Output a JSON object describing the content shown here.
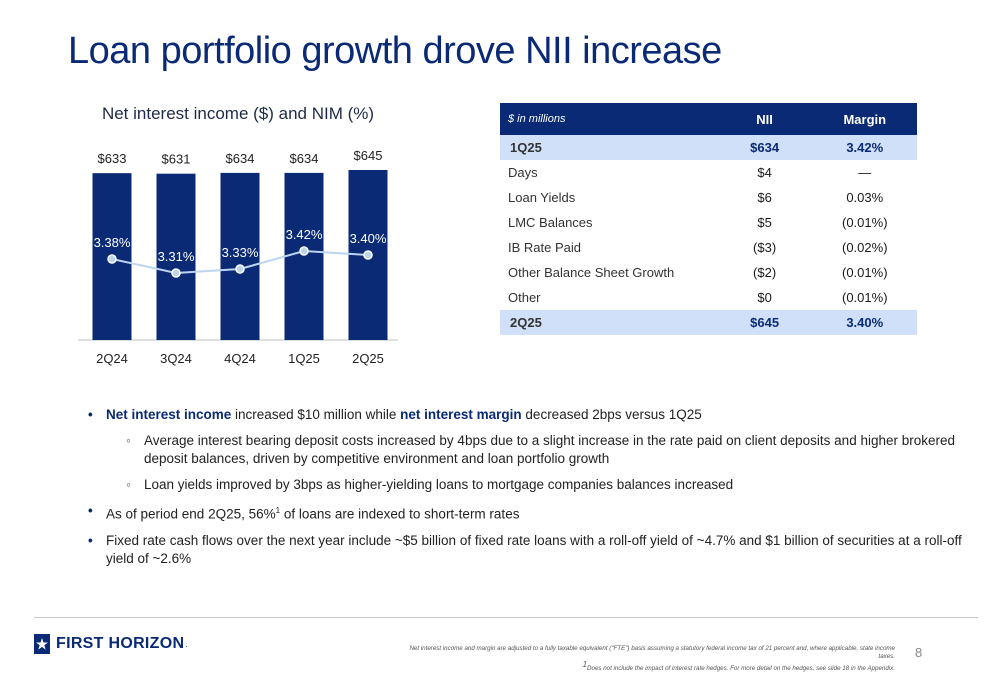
{
  "slide": {
    "title": "Loan portfolio growth drove NII increase",
    "page_number": "8"
  },
  "chart_data": {
    "type": "bar",
    "title": "Net interest income ($) and NIM (%)",
    "categories": [
      "2Q24",
      "3Q24",
      "4Q24",
      "1Q25",
      "2Q25"
    ],
    "series": [
      {
        "type": "bar",
        "values": [
          633,
          631,
          634,
          634,
          645
        ],
        "labels": [
          "$633",
          "$631",
          "$634",
          "$634",
          "$645"
        ],
        "color": "#0a2a75"
      },
      {
        "type": "line",
        "values": [
          3.38,
          3.31,
          3.33,
          3.42,
          3.4
        ],
        "labels": [
          "3.38%",
          "3.31%",
          "3.33%",
          "3.42%",
          "3.40%"
        ],
        "color": "#bcd4f0"
      }
    ]
  },
  "table": {
    "header": [
      "$ in millions",
      "NII",
      "Margin"
    ],
    "rows": [
      {
        "label": "1Q25",
        "nii": "$634",
        "margin": "3.42%",
        "highlight": true
      },
      {
        "label": "Days",
        "nii": "$4",
        "margin": "—"
      },
      {
        "label": "Loan Yields",
        "nii": "$6",
        "margin": "0.03%"
      },
      {
        "label": "LMC Balances",
        "nii": "$5",
        "margin": "(0.01%)"
      },
      {
        "label": "IB Rate Paid",
        "nii": "($3)",
        "margin": "(0.02%)"
      },
      {
        "label": "Other Balance Sheet Growth",
        "nii": "($2)",
        "margin": "(0.01%)"
      },
      {
        "label": "Other",
        "nii": "$0",
        "margin": "(0.01%)"
      },
      {
        "label": "2Q25",
        "nii": "$645",
        "margin": "3.40%",
        "highlight": true
      }
    ]
  },
  "bullets": {
    "b1_bold1": "Net interest income",
    "b1_text1": " increased $10 million while ",
    "b1_bold2": "net interest margin",
    "b1_text2": " decreased 2bps versus 1Q25",
    "sb1": "Average interest bearing deposit costs increased by 4bps due to a slight increase in the rate paid on client deposits and higher brokered deposit balances, driven by competitive environment and loan portfolio growth",
    "sb2": "Loan yields improved by 3bps as higher-yielding loans to mortgage companies balances increased",
    "b2_pre": "As of period end 2Q25, 56%",
    "b2_sup": "1",
    "b2_post": " of loans are indexed to short-term rates",
    "b3": "Fixed rate cash flows over the next year include ~$5 billion of fixed rate loans with a roll-off yield of ~4.7% and $1 billion of securities at a roll-off yield of ~2.6%"
  },
  "footer": {
    "logo_text": "FIRST HORIZON",
    "logo_suffix": ".",
    "note1": "Net interest income and margin are adjusted to a fully taxable equivalent (\"FTE\") basis assuming a statutory federal income tax of 21 percent and, where applicable, state income taxes.",
    "note2_sup": "1",
    "note2": "Does not include the impact of interest rate hedges. For more detail on the hedges, see slide 18 in the Appendix."
  }
}
